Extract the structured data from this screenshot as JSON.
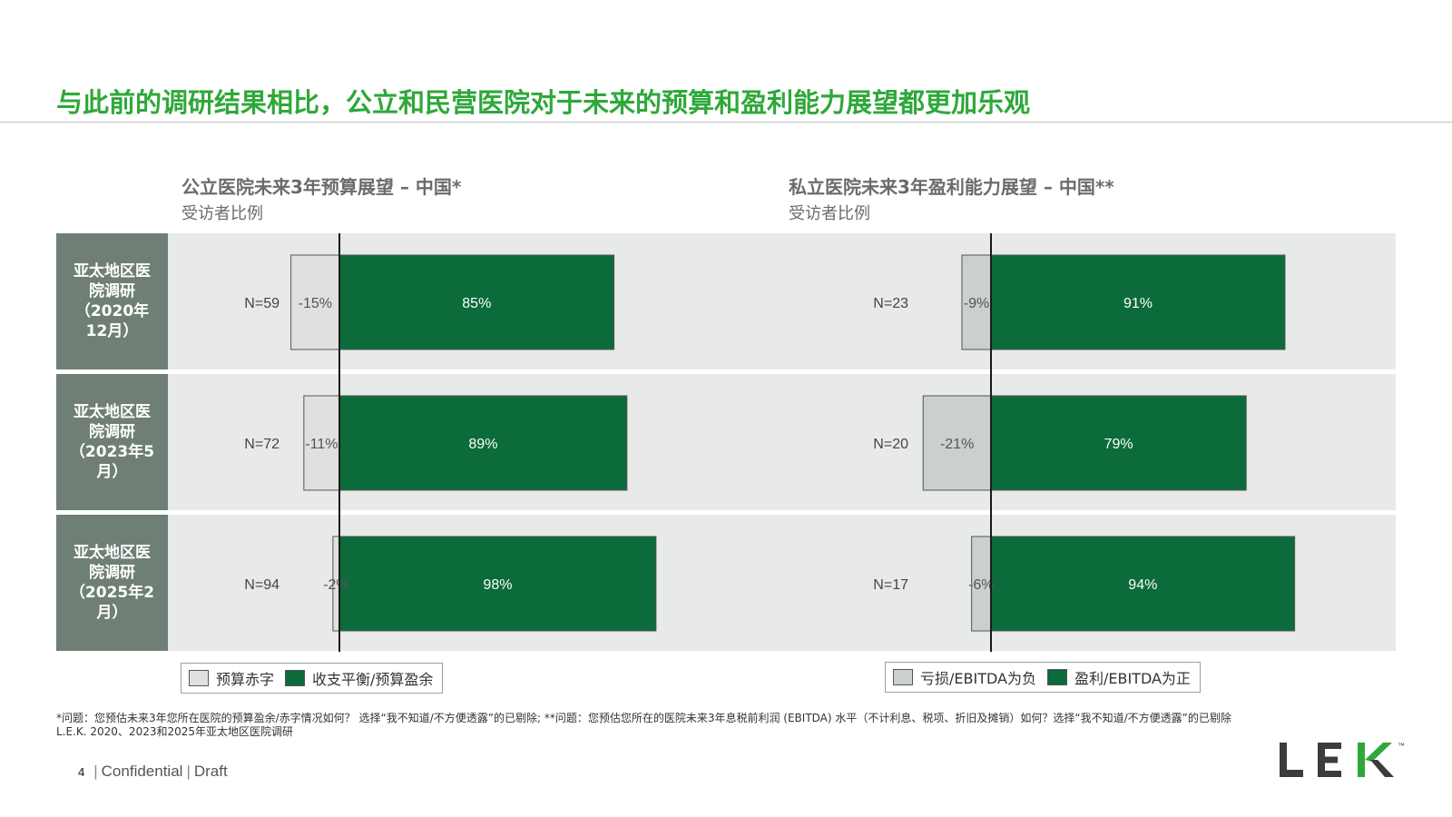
{
  "title": "与此前的调研结果相比，公立和民营医院对于未来的预算和盈利能力展望都更加乐观",
  "row_labels": [
    "亚太地区医院调研（2020年12月）",
    "亚太地区医院调研（2023年5月）",
    "亚太地区医院调研（2025年2月）"
  ],
  "colors": {
    "title": "#2fa83a",
    "positive": "#0b6b3a",
    "deficit": "#e0e0e0",
    "loss": "#c9d0cd",
    "band": "#e8eaea",
    "row_label_bg": "#6f7f75"
  },
  "charts": [
    {
      "title": "公立医院未来3年预算展望 – 中国*",
      "subtitle": "受访者比例"
    },
    {
      "title": "私立医院未来3年盈利能力展望 – 中国**",
      "subtitle": "受访者比例"
    }
  ],
  "chart_data": [
    {
      "type": "bar",
      "orientation": "horizontal-diverging",
      "title": "公立医院未来3年预算展望 – 中国*",
      "subtitle": "受访者比例",
      "categories": [
        "亚太地区医院调研（2020年12月）",
        "亚太地区医院调研（2023年5月）",
        "亚太地区医院调研（2025年2月）"
      ],
      "n_labels": [
        "N=59",
        "N=72",
        "N=94"
      ],
      "series": [
        {
          "name": "预算赤字",
          "values": [
            -15,
            -11,
            -2
          ],
          "labels": [
            "-15%",
            "-11%",
            "-2%"
          ],
          "color": "#e0e0e0"
        },
        {
          "name": "收支平衡/预算盈余",
          "values": [
            85,
            89,
            98
          ],
          "labels": [
            "85%",
            "89%",
            "98%"
          ],
          "color": "#0b6b3a"
        }
      ],
      "legend": {
        "position": "bottom-left",
        "items": [
          "预算赤字",
          "收支平衡/预算盈余"
        ]
      }
    },
    {
      "type": "bar",
      "orientation": "horizontal-diverging",
      "title": "私立医院未来3年盈利能力展望 – 中国**",
      "subtitle": "受访者比例",
      "categories": [
        "亚太地区医院调研（2020年12月）",
        "亚太地区医院调研（2023年5月）",
        "亚太地区医院调研（2025年2月）"
      ],
      "n_labels": [
        "N=23",
        "N=20",
        "N=17"
      ],
      "series": [
        {
          "name": "亏损/EBITDA为负",
          "values": [
            -9,
            -21,
            -6
          ],
          "labels": [
            "-9%",
            "-21%",
            "-6%"
          ],
          "color": "#c9d0cd"
        },
        {
          "name": "盈利/EBITDA为正",
          "values": [
            91,
            79,
            94
          ],
          "labels": [
            "91%",
            "79%",
            "94%"
          ],
          "color": "#0b6b3a"
        }
      ],
      "legend": {
        "position": "bottom-right",
        "items": [
          "亏损/EBITDA为负",
          "盈利/EBITDA为正"
        ]
      }
    }
  ],
  "footnote": "*问题：您预估未来3年您所在医院的预算盈余/赤字情况如何？ 选择“我不知道/不方便透露”的已剔除; **问题：您预估您所在的医院未来3年息税前利润 (EBITDA) 水平（不计利息、税项、折旧及摊销）如何？选择“我不知道/不方便透露”的已剔除",
  "source": "L.E.K. 2020、2023和2025年亚太地区医院调研",
  "footer": {
    "page": "4",
    "confidential": "Confidential",
    "draft": "Draft"
  },
  "logo": {
    "text": "LEK",
    "tm": "™"
  }
}
